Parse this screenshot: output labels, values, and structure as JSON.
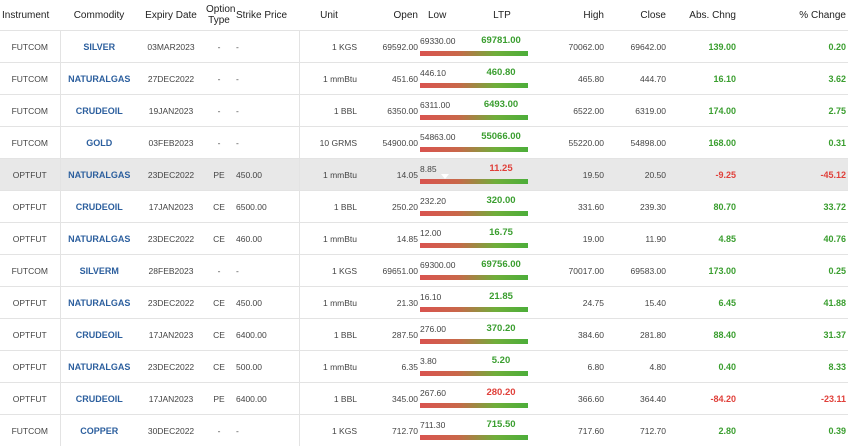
{
  "headers": {
    "instrument": "Instrument",
    "commodity": "Commodity",
    "expiry": "Expiry Date",
    "option_type": "Option Type",
    "strike": "Strike Price",
    "unit": "Unit",
    "open": "Open",
    "low": "Low",
    "ltp": "LTP",
    "high": "High",
    "close": "Close",
    "abs": "Abs. Chng",
    "pct": "% Change"
  },
  "colors": {
    "up": "#3a9e2f",
    "down": "#e0403a",
    "commodity": "#2c5f9e",
    "highlight_row": "#e8e8e8"
  },
  "rows": [
    {
      "instrument": "FUTCOM",
      "commodity": "SILVER",
      "expiry": "03MAR2023",
      "option_type": "-",
      "strike": "-",
      "unit": "1 KGS",
      "open": "69592.00",
      "low": "69330.00",
      "ltp": "69781.00",
      "high": "70062.00",
      "close": "69642.00",
      "abs": "139.00",
      "pct": "0.20",
      "dir": "up",
      "ltp_pos": 0.62,
      "highlight": false
    },
    {
      "instrument": "FUTCOM",
      "commodity": "NATURALGAS",
      "expiry": "27DEC2022",
      "option_type": "-",
      "strike": "-",
      "unit": "1 mmBtu",
      "open": "451.60",
      "low": "446.10",
      "ltp": "460.80",
      "high": "465.80",
      "close": "444.70",
      "abs": "16.10",
      "pct": "3.62",
      "dir": "up",
      "ltp_pos": 0.75,
      "highlight": false
    },
    {
      "instrument": "FUTCOM",
      "commodity": "CRUDEOIL",
      "expiry": "19JAN2023",
      "option_type": "-",
      "strike": "-",
      "unit": "1 BBL",
      "open": "6350.00",
      "low": "6311.00",
      "ltp": "6493.00",
      "high": "6522.00",
      "close": "6319.00",
      "abs": "174.00",
      "pct": "2.75",
      "dir": "up",
      "ltp_pos": 0.86,
      "highlight": false
    },
    {
      "instrument": "FUTCOM",
      "commodity": "GOLD",
      "expiry": "03FEB2023",
      "option_type": "-",
      "strike": "-",
      "unit": "10 GRMS",
      "open": "54900.00",
      "low": "54863.00",
      "ltp": "55066.00",
      "high": "55220.00",
      "close": "54898.00",
      "abs": "168.00",
      "pct": "0.31",
      "dir": "up",
      "ltp_pos": 0.57,
      "highlight": false
    },
    {
      "instrument": "OPTFUT",
      "commodity": "NATURALGAS",
      "expiry": "23DEC2022",
      "option_type": "PE",
      "strike": "450.00",
      "unit": "1 mmBtu",
      "open": "14.05",
      "low": "8.85",
      "ltp": "11.25",
      "high": "19.50",
      "close": "20.50",
      "abs": "-9.25",
      "pct": "-45.12",
      "dir": "down",
      "ltp_pos": 0.23,
      "highlight": true
    },
    {
      "instrument": "OPTFUT",
      "commodity": "CRUDEOIL",
      "expiry": "17JAN2023",
      "option_type": "CE",
      "strike": "6500.00",
      "unit": "1 BBL",
      "open": "250.20",
      "low": "232.20",
      "ltp": "320.00",
      "high": "331.60",
      "close": "239.30",
      "abs": "80.70",
      "pct": "33.72",
      "dir": "up",
      "ltp_pos": 0.88,
      "highlight": false
    },
    {
      "instrument": "OPTFUT",
      "commodity": "NATURALGAS",
      "expiry": "23DEC2022",
      "option_type": "CE",
      "strike": "460.00",
      "unit": "1 mmBtu",
      "open": "14.85",
      "low": "12.00",
      "ltp": "16.75",
      "high": "19.00",
      "close": "11.90",
      "abs": "4.85",
      "pct": "40.76",
      "dir": "up",
      "ltp_pos": 0.68,
      "highlight": false
    },
    {
      "instrument": "FUTCOM",
      "commodity": "SILVERM",
      "expiry": "28FEB2023",
      "option_type": "-",
      "strike": "-",
      "unit": "1 KGS",
      "open": "69651.00",
      "low": "69300.00",
      "ltp": "69756.00",
      "high": "70017.00",
      "close": "69583.00",
      "abs": "173.00",
      "pct": "0.25",
      "dir": "up",
      "ltp_pos": 0.64,
      "highlight": false
    },
    {
      "instrument": "OPTFUT",
      "commodity": "NATURALGAS",
      "expiry": "23DEC2022",
      "option_type": "CE",
      "strike": "450.00",
      "unit": "1 mmBtu",
      "open": "21.30",
      "low": "16.10",
      "ltp": "21.85",
      "high": "24.75",
      "close": "15.40",
      "abs": "6.45",
      "pct": "41.88",
      "dir": "up",
      "ltp_pos": 0.66,
      "highlight": false
    },
    {
      "instrument": "OPTFUT",
      "commodity": "CRUDEOIL",
      "expiry": "17JAN2023",
      "option_type": "CE",
      "strike": "6400.00",
      "unit": "1 BBL",
      "open": "287.50",
      "low": "276.00",
      "ltp": "370.20",
      "high": "384.60",
      "close": "281.80",
      "abs": "88.40",
      "pct": "31.37",
      "dir": "up",
      "ltp_pos": 0.87,
      "highlight": false
    },
    {
      "instrument": "OPTFUT",
      "commodity": "NATURALGAS",
      "expiry": "23DEC2022",
      "option_type": "CE",
      "strike": "500.00",
      "unit": "1 mmBtu",
      "open": "6.35",
      "low": "3.80",
      "ltp": "5.20",
      "high": "6.80",
      "close": "4.80",
      "abs": "0.40",
      "pct": "8.33",
      "dir": "up",
      "ltp_pos": 0.47,
      "highlight": false
    },
    {
      "instrument": "OPTFUT",
      "commodity": "CRUDEOIL",
      "expiry": "17JAN2023",
      "option_type": "PE",
      "strike": "6400.00",
      "unit": "1 BBL",
      "open": "345.00",
      "low": "267.60",
      "ltp": "280.20",
      "high": "366.60",
      "close": "364.40",
      "abs": "-84.20",
      "pct": "-23.11",
      "dir": "down",
      "ltp_pos": 0.13,
      "highlight": false
    },
    {
      "instrument": "FUTCOM",
      "commodity": "COPPER",
      "expiry": "30DEC2022",
      "option_type": "-",
      "strike": "-",
      "unit": "1 KGS",
      "open": "712.70",
      "low": "711.30",
      "ltp": "715.50",
      "high": "717.60",
      "close": "712.70",
      "abs": "2.80",
      "pct": "0.39",
      "dir": "up",
      "ltp_pos": 0.66,
      "highlight": false
    }
  ]
}
